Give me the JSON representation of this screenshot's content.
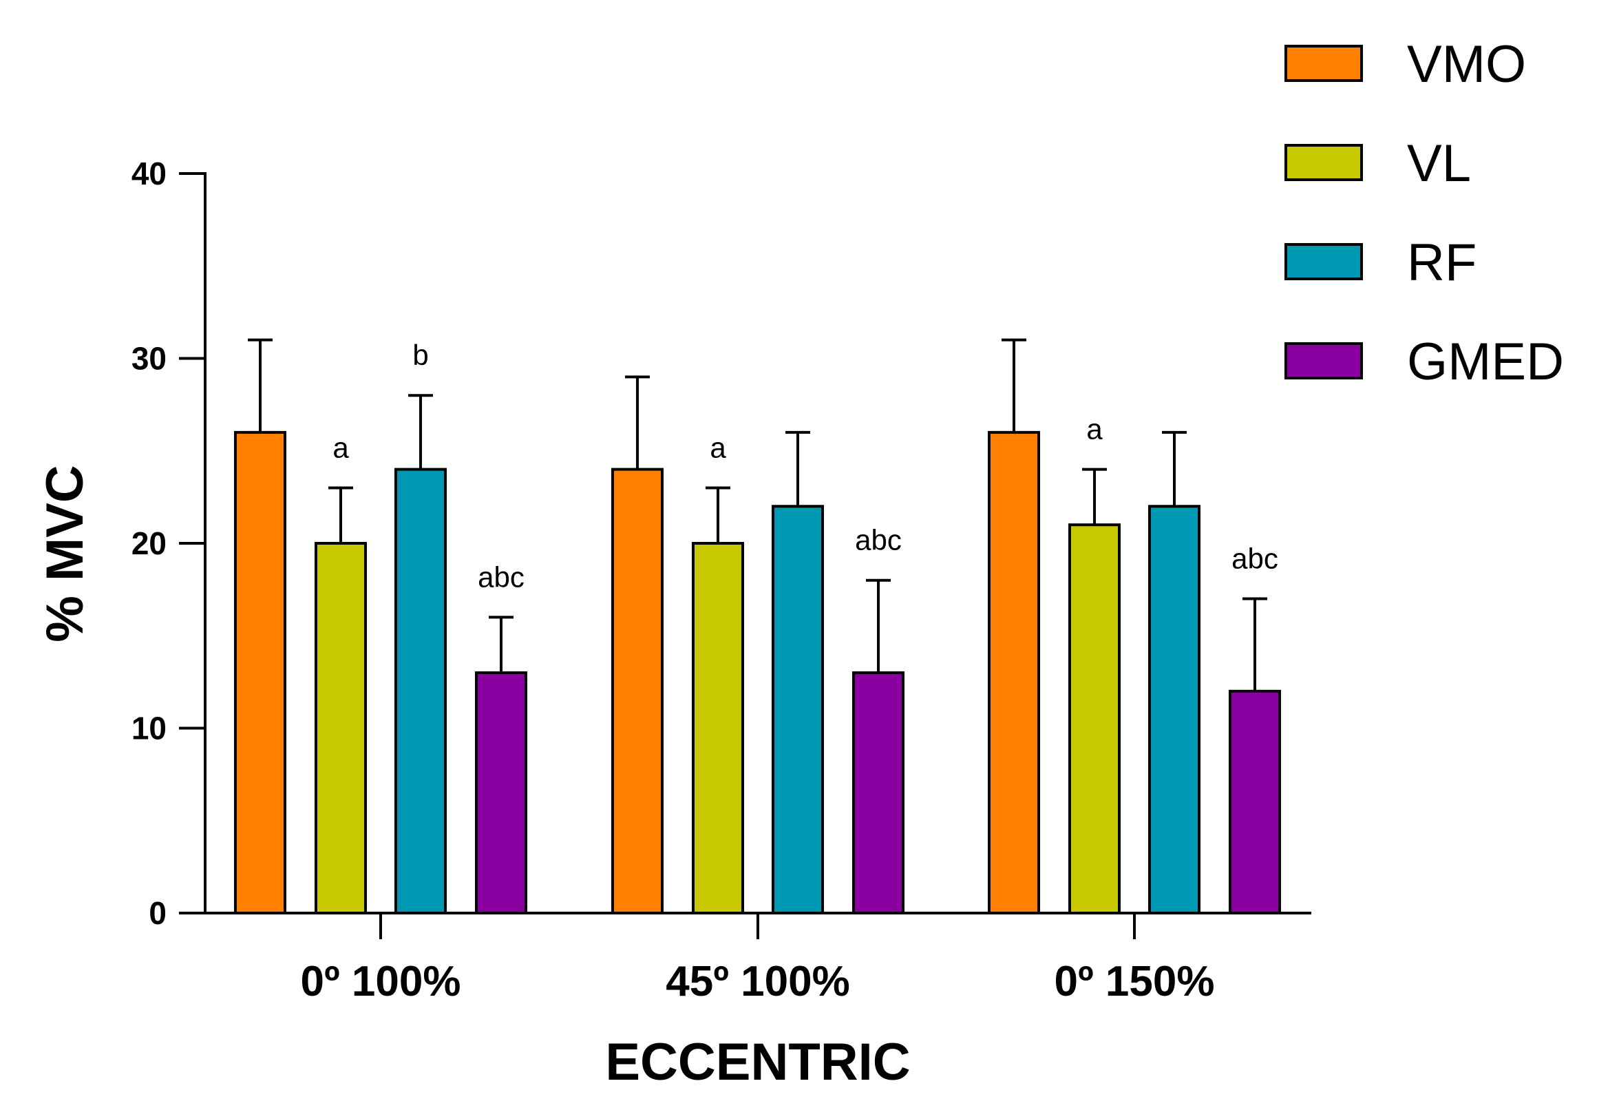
{
  "chart_data": {
    "type": "bar",
    "title": "",
    "xlabel": "ECCENTRIC",
    "ylabel": "% MVC",
    "ylim": [
      0,
      40
    ],
    "yticks": [
      0,
      10,
      20,
      30,
      40
    ],
    "ytick_labels": [
      "0",
      "10",
      "20",
      "30",
      "40"
    ],
    "categories": [
      "0º 100%",
      "45º 100%",
      "0º 150%"
    ],
    "grid": false,
    "legend_position": "top-right",
    "series": [
      {
        "name": "VMO",
        "color": "#FF8000",
        "values": [
          26,
          24,
          26
        ],
        "errors": [
          5,
          5,
          5
        ],
        "annotations": [
          "",
          "",
          ""
        ]
      },
      {
        "name": "VL",
        "color": "#C8C800",
        "values": [
          20,
          20,
          21
        ],
        "errors": [
          3,
          3,
          3
        ],
        "annotations": [
          "a",
          "a",
          "a"
        ]
      },
      {
        "name": "RF",
        "color": "#0099B4",
        "values": [
          24,
          22,
          22
        ],
        "errors": [
          4,
          4,
          4
        ],
        "annotations": [
          "b",
          "",
          ""
        ]
      },
      {
        "name": "GMED",
        "color": "#8B00A0",
        "values": [
          13,
          13,
          12
        ],
        "errors": [
          3,
          5,
          5
        ],
        "annotations": [
          "abc",
          "abc",
          "abc"
        ]
      }
    ]
  }
}
